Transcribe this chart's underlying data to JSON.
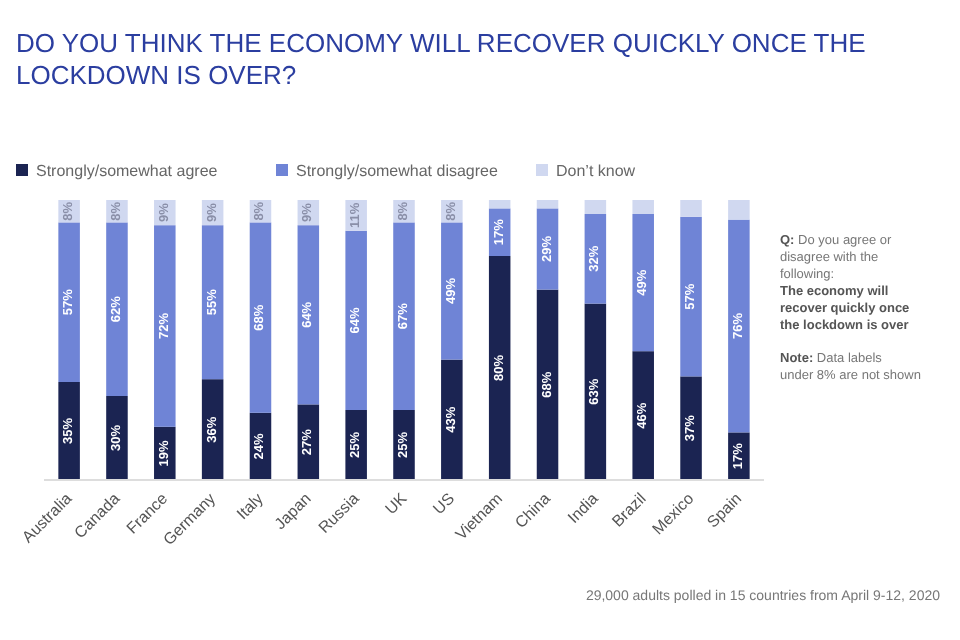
{
  "chart_data": {
    "type": "bar",
    "stacked": true,
    "title": "DO YOU THINK THE ECONOMY WILL RECOVER QUICKLY ONCE THE LOCKDOWN IS OVER?",
    "categories": [
      "Australia",
      "Canada",
      "France",
      "Germany",
      "Italy",
      "Japan",
      "Russia",
      "UK",
      "US",
      "Vietnam",
      "China",
      "India",
      "Brazil",
      "Mexico",
      "Spain"
    ],
    "series": [
      {
        "name": "Strongly/somewhat agree",
        "color": "#1b2452",
        "values": [
          35,
          30,
          19,
          36,
          24,
          27,
          25,
          25,
          43,
          80,
          68,
          63,
          46,
          37,
          17
        ],
        "value_labels": [
          "35%",
          "30%",
          "19%",
          "36%",
          "24%",
          "27%",
          "25%",
          "25%",
          "43%",
          "80%",
          "68%",
          "63%",
          "46%",
          "37%",
          "17%"
        ]
      },
      {
        "name": "Strongly/somewhat disagree",
        "color": "#6f84d6",
        "values": [
          57,
          62,
          72,
          55,
          68,
          64,
          64,
          67,
          49,
          17,
          29,
          32,
          49,
          57,
          76
        ],
        "value_labels": [
          "57%",
          "62%",
          "72%",
          "55%",
          "68%",
          "64%",
          "64%",
          "67%",
          "49%",
          "17%",
          "29%",
          "32%",
          "49%",
          "57%",
          "76%"
        ]
      },
      {
        "name": "Don’t know",
        "color": "#d0d8f0",
        "values": [
          8,
          8,
          9,
          9,
          8,
          9,
          11,
          8,
          8,
          3,
          3,
          5,
          5,
          6,
          7
        ],
        "value_labels": [
          "8%",
          "8%",
          "9%",
          "9%",
          "8%",
          "9%",
          "11%",
          "8%",
          "8%",
          null,
          null,
          null,
          null,
          null,
          null
        ]
      }
    ],
    "ylim": [
      0,
      100
    ],
    "tick_labels": "x",
    "legend": "top left",
    "annotations": [
      "Q: Do you agree or disagree with the following:",
      "The economy will recover quickly once the lockdown is over",
      "Note: Data labels under 8% are not shown",
      "29,000 adults polled in 15 countries from April 9-12, 2020"
    ]
  }
}
